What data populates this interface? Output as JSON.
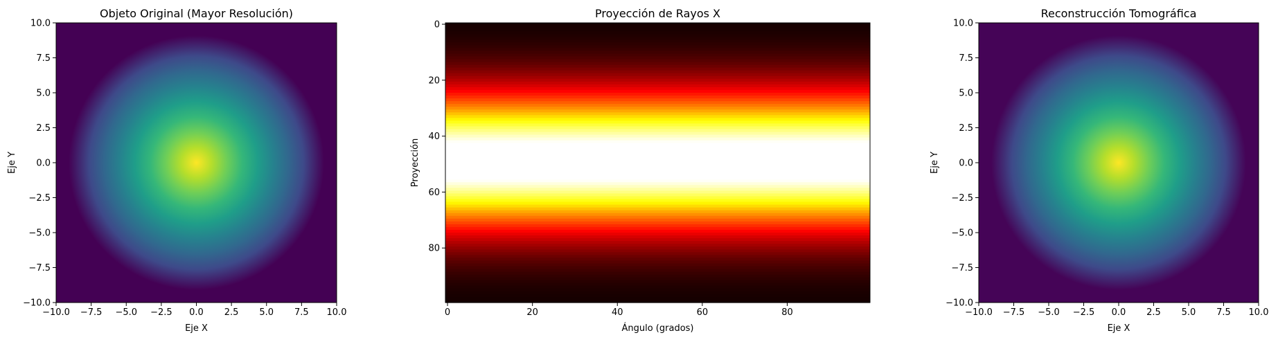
{
  "chart_data": [
    {
      "type": "heatmap",
      "title": "Objeto Original (Mayor Resolución)",
      "xlabel": "Eje X",
      "ylabel": "Eje Y",
      "xlim": [
        -10,
        10
      ],
      "ylim": [
        -10,
        10
      ],
      "xticks": [
        -10.0,
        -7.5,
        -5.0,
        -2.5,
        0.0,
        2.5,
        5.0,
        7.5,
        10.0
      ],
      "yticks": [
        10.0,
        7.5,
        5.0,
        2.5,
        0.0,
        -2.5,
        -5.0,
        -7.5,
        -10.0
      ],
      "xtick_labels": [
        "−10.0",
        "−7.5",
        "−5.0",
        "−2.5",
        "0.0",
        "2.5",
        "5.0",
        "7.5",
        "10.0"
      ],
      "ytick_labels": [
        "10.0",
        "7.5",
        "5.0",
        "2.5",
        "0.0",
        "−2.5",
        "−5.0",
        "−7.5",
        "−10.0"
      ],
      "colormap": "viridis",
      "pattern": "2D Gaussian blob centered at (0, 0), width about 3.5 units",
      "peak_center": [
        0,
        0
      ],
      "sigma": 3.5,
      "grid": false
    },
    {
      "type": "heatmap",
      "title": "Proyección de Rayos X",
      "xlabel": "Ángulo (grados)",
      "ylabel": "Proyección",
      "xlim": [
        0,
        100
      ],
      "ylim": [
        100,
        0
      ],
      "xticks": [
        0,
        20,
        40,
        60,
        80
      ],
      "yticks": [
        0,
        20,
        40,
        60,
        80
      ],
      "xtick_labels": [
        "0",
        "20",
        "40",
        "60",
        "80"
      ],
      "ytick_labels": [
        "0",
        "20",
        "40",
        "60",
        "80"
      ],
      "colormap": "hot",
      "pattern": "horizontal bands, constant along angle; Gaussian profile along projection index peaking near 49",
      "peak_row": 49.5,
      "sigma": 17,
      "grid": false
    },
    {
      "type": "heatmap",
      "title": "Reconstrucción Tomográfica",
      "xlabel": "Eje X",
      "ylabel": "Eje Y",
      "xlim": [
        -10,
        10
      ],
      "ylim": [
        -10,
        10
      ],
      "xticks": [
        -10.0,
        -7.5,
        -5.0,
        -2.5,
        0.0,
        2.5,
        5.0,
        7.5,
        10.0
      ],
      "yticks": [
        10.0,
        7.5,
        5.0,
        2.5,
        0.0,
        -2.5,
        -5.0,
        -7.5,
        -10.0
      ],
      "xtick_labels": [
        "−10.0",
        "−7.5",
        "−5.0",
        "−2.5",
        "0.0",
        "2.5",
        "5.0",
        "7.5",
        "10.0"
      ],
      "ytick_labels": [
        "10.0",
        "7.5",
        "5.0",
        "2.5",
        "0.0",
        "−2.5",
        "−5.0",
        "−7.5",
        "−10.0"
      ],
      "colormap": "viridis",
      "pattern": "2D Gaussian blob centered at (0, 0), slightly smoother than original",
      "peak_center": [
        0,
        0
      ],
      "sigma": 3.5,
      "grid": false
    }
  ]
}
